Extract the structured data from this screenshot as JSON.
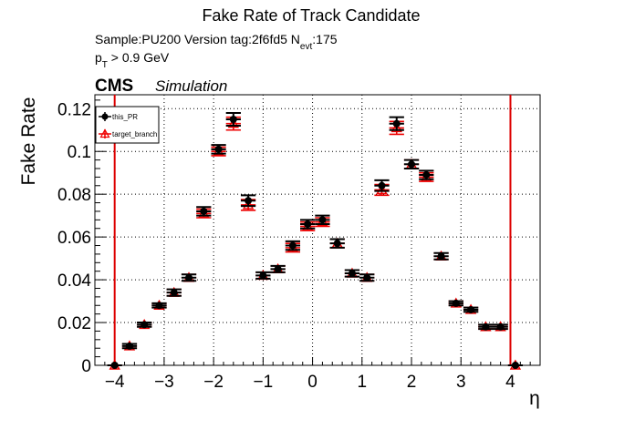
{
  "chart_data": {
    "type": "scatter",
    "title": "Fake Rate of Track Candidate",
    "subtitle_sample": "Sample:PU200   Version tag:2f6fd5  N",
    "subtitle_sub": "evt",
    "subtitle_value": ":175",
    "cut_p": "p",
    "cut_sub": "T",
    "cut_rest": " > 0.9 GeV",
    "cms_label": "CMS",
    "simulation_label": "Simulation",
    "xlabel": "η",
    "ylabel": "Fake Rate",
    "xlim": [
      -4.4,
      4.6
    ],
    "ylim": [
      0,
      0.1265
    ],
    "x_ticks": [
      -4,
      -3,
      -2,
      -1,
      0,
      1,
      2,
      3,
      4
    ],
    "x_tick_labels": [
      "−4",
      "−3",
      "−2",
      "−1",
      "0",
      "1",
      "2",
      "3",
      "4"
    ],
    "y_ticks": [
      0,
      0.02,
      0.04,
      0.06,
      0.08,
      0.1,
      0.12
    ],
    "y_tick_labels": [
      "0",
      "0.02",
      "0.04",
      "0.06",
      "0.08",
      "0.1",
      "0.12"
    ],
    "grid": true,
    "legend_position": "top-left",
    "bin_half_width": 0.15,
    "vertical_lines": [
      -4.0,
      4.0
    ],
    "vertical_line_color": "#dd0000",
    "series": [
      {
        "name": "this_PR",
        "color": "#000000",
        "marker": "circle",
        "x": [
          -4.0,
          -3.7,
          -3.4,
          -3.1,
          -2.8,
          -2.5,
          -2.2,
          -1.9,
          -1.6,
          -1.3,
          -1.0,
          -0.7,
          -0.4,
          -0.1,
          0.2,
          0.5,
          0.8,
          1.1,
          1.4,
          1.7,
          2.0,
          2.3,
          2.6,
          2.9,
          3.2,
          3.5,
          3.8,
          4.1
        ],
        "y": [
          0.0,
          0.009,
          0.019,
          0.028,
          0.034,
          0.041,
          0.072,
          0.101,
          0.115,
          0.077,
          0.042,
          0.045,
          0.056,
          0.066,
          0.068,
          0.057,
          0.043,
          0.041,
          0.084,
          0.113,
          0.094,
          0.089,
          0.051,
          0.029,
          0.026,
          0.018,
          0.018,
          0.0
        ],
        "err": [
          0.0,
          0.001,
          0.001,
          0.001,
          0.0015,
          0.0015,
          0.002,
          0.002,
          0.003,
          0.0025,
          0.0015,
          0.0015,
          0.002,
          0.002,
          0.002,
          0.002,
          0.0015,
          0.0015,
          0.0025,
          0.003,
          0.002,
          0.002,
          0.0015,
          0.001,
          0.001,
          0.001,
          0.001,
          0.0
        ]
      },
      {
        "name": "target_branch",
        "color": "#ee0000",
        "marker": "triangle",
        "x": [
          -4.0,
          -3.7,
          -3.4,
          -3.1,
          -2.8,
          -2.5,
          -2.2,
          -1.9,
          -1.6,
          -1.3,
          -1.0,
          -0.7,
          -0.4,
          -0.1,
          0.2,
          0.5,
          0.8,
          1.1,
          1.4,
          1.7,
          2.0,
          2.3,
          2.6,
          2.9,
          3.2,
          3.5,
          3.8,
          4.1
        ],
        "y": [
          0.0,
          0.009,
          0.019,
          0.028,
          0.034,
          0.041,
          0.071,
          0.1,
          0.113,
          0.075,
          0.042,
          0.045,
          0.055,
          0.065,
          0.067,
          0.057,
          0.043,
          0.041,
          0.082,
          0.111,
          0.094,
          0.088,
          0.051,
          0.029,
          0.026,
          0.018,
          0.018,
          0.0
        ],
        "err": [
          0.0,
          0.001,
          0.001,
          0.001,
          0.0015,
          0.0015,
          0.002,
          0.002,
          0.003,
          0.0025,
          0.0015,
          0.0015,
          0.002,
          0.002,
          0.002,
          0.002,
          0.0015,
          0.0015,
          0.0025,
          0.003,
          0.002,
          0.002,
          0.0015,
          0.001,
          0.001,
          0.001,
          0.001,
          0.0
        ]
      }
    ]
  }
}
